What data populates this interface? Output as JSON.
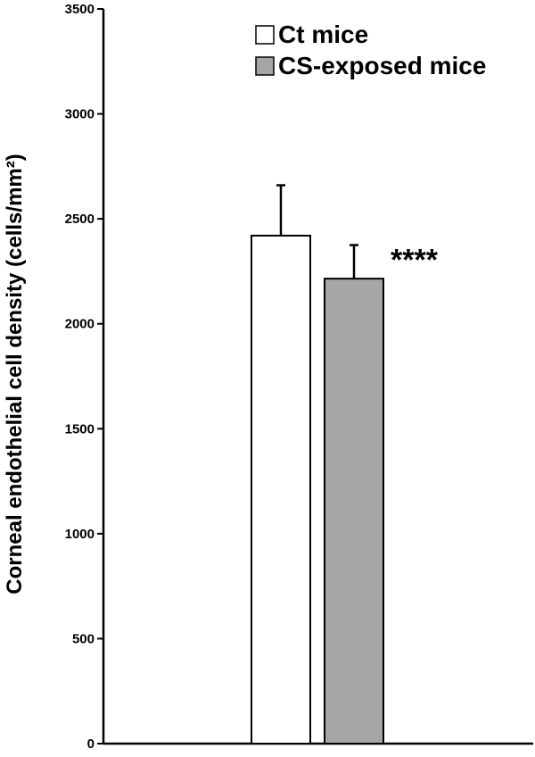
{
  "chart_data": {
    "type": "bar",
    "title": "",
    "xlabel": "",
    "ylabel": "Corneal endothelial cell density (cells/mm²)",
    "ylim": [
      0,
      3500
    ],
    "yticks": [
      0,
      500,
      1000,
      1500,
      2000,
      2500,
      3000,
      3500
    ],
    "ytick_labels": [
      "0",
      "500",
      "1000",
      "1500",
      "2000",
      "2500",
      "3000",
      "3500"
    ],
    "grid": false,
    "legend_position": "top-right",
    "categories": [
      ""
    ],
    "series": [
      {
        "name": "Ct mice",
        "values": [
          2420
        ],
        "error_upper": [
          240
        ],
        "color": "#ffffff"
      },
      {
        "name": "CS-exposed mice",
        "values": [
          2215
        ],
        "error_upper": [
          160
        ],
        "color": "#a6a6a6",
        "annotation": "****"
      }
    ]
  }
}
